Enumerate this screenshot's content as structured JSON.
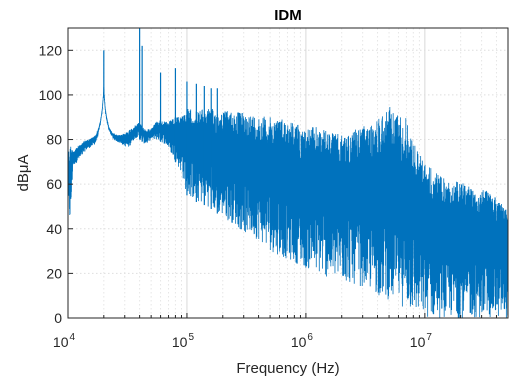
{
  "chart_data": {
    "type": "line",
    "title": "IDM",
    "xlabel": "Frequency (Hz)",
    "ylabel": "dBμA",
    "xscale": "log",
    "xlim": [
      10000,
      50000000
    ],
    "ylim": [
      0,
      130
    ],
    "grid": "major and minor (dotted)",
    "x_ticks": [
      {
        "base": "10",
        "exp": "4"
      },
      {
        "base": "10",
        "exp": "5"
      },
      {
        "base": "10",
        "exp": "6"
      },
      {
        "base": "10",
        "exp": "7"
      }
    ],
    "y_ticks": [
      "0",
      "20",
      "40",
      "60",
      "80",
      "100",
      "120"
    ],
    "color": "#0072BD",
    "series": [
      {
        "envelope": {
          "freq_hz": [
            10000,
            10500,
            11000,
            12000,
            13000,
            14000,
            15000,
            16000,
            17000,
            18000,
            18800,
            19400,
            19800,
            20000,
            20200,
            20600,
            21200,
            22000,
            23000,
            24000,
            26000,
            28000,
            30000,
            32000,
            34000,
            36000,
            38000,
            40000,
            42000,
            44000,
            46000,
            48000,
            50000,
            55000,
            60000,
            65000,
            70000,
            80000,
            90000,
            100000,
            120000,
            150000,
            200000,
            250000,
            300000,
            400000,
            500000,
            600000,
            700000,
            800000,
            1000000,
            1200000,
            1500000,
            2000000,
            2500000,
            3000000,
            3500000,
            4000000,
            5000000,
            6000000,
            7000000,
            8000000,
            10000000,
            12000000,
            15000000,
            20000000,
            25000000,
            30000000,
            40000000,
            50000000
          ],
          "upper_db": [
            75,
            78,
            75,
            77,
            78,
            80,
            80,
            81,
            82,
            85,
            89,
            94,
            100,
            105,
            100,
            94,
            90,
            86,
            84,
            83,
            82,
            82,
            83,
            84,
            85,
            86,
            87,
            88,
            86,
            85,
            84,
            85,
            85,
            88,
            89,
            88,
            88,
            90,
            91,
            94,
            93,
            94,
            93,
            93,
            92,
            91,
            90,
            90,
            89,
            88,
            85,
            86,
            84,
            82,
            84,
            86,
            86,
            90,
            95,
            92,
            90,
            79,
            70,
            66,
            62,
            61,
            60,
            58,
            55,
            48
          ],
          "lower_db": [
            45,
            42,
            68,
            70,
            72,
            75,
            76,
            77,
            78,
            82,
            87,
            92,
            98,
            100,
            98,
            92,
            88,
            84,
            82,
            80,
            79,
            78,
            77,
            76,
            78,
            80,
            81,
            80,
            79,
            78,
            78,
            79,
            80,
            80,
            79,
            78,
            76,
            70,
            65,
            55,
            52,
            50,
            45,
            42,
            38,
            35,
            30,
            28,
            26,
            25,
            22,
            20,
            18,
            16,
            15,
            14,
            12,
            10,
            8,
            6,
            4,
            2,
            0,
            0,
            0,
            0,
            0,
            0,
            0,
            0
          ]
        },
        "spikes": [
          {
            "freq_hz": 20000,
            "db": 120
          },
          {
            "freq_hz": 40000,
            "db": 130
          },
          {
            "freq_hz": 42000,
            "db": 122
          },
          {
            "freq_hz": 60000,
            "db": 110
          },
          {
            "freq_hz": 80000,
            "db": 112
          },
          {
            "freq_hz": 100000,
            "db": 106
          },
          {
            "freq_hz": 120000,
            "db": 105
          },
          {
            "freq_hz": 140000,
            "db": 104
          },
          {
            "freq_hz": 160000,
            "db": 103
          },
          {
            "freq_hz": 180000,
            "db": 103
          }
        ]
      }
    ]
  }
}
